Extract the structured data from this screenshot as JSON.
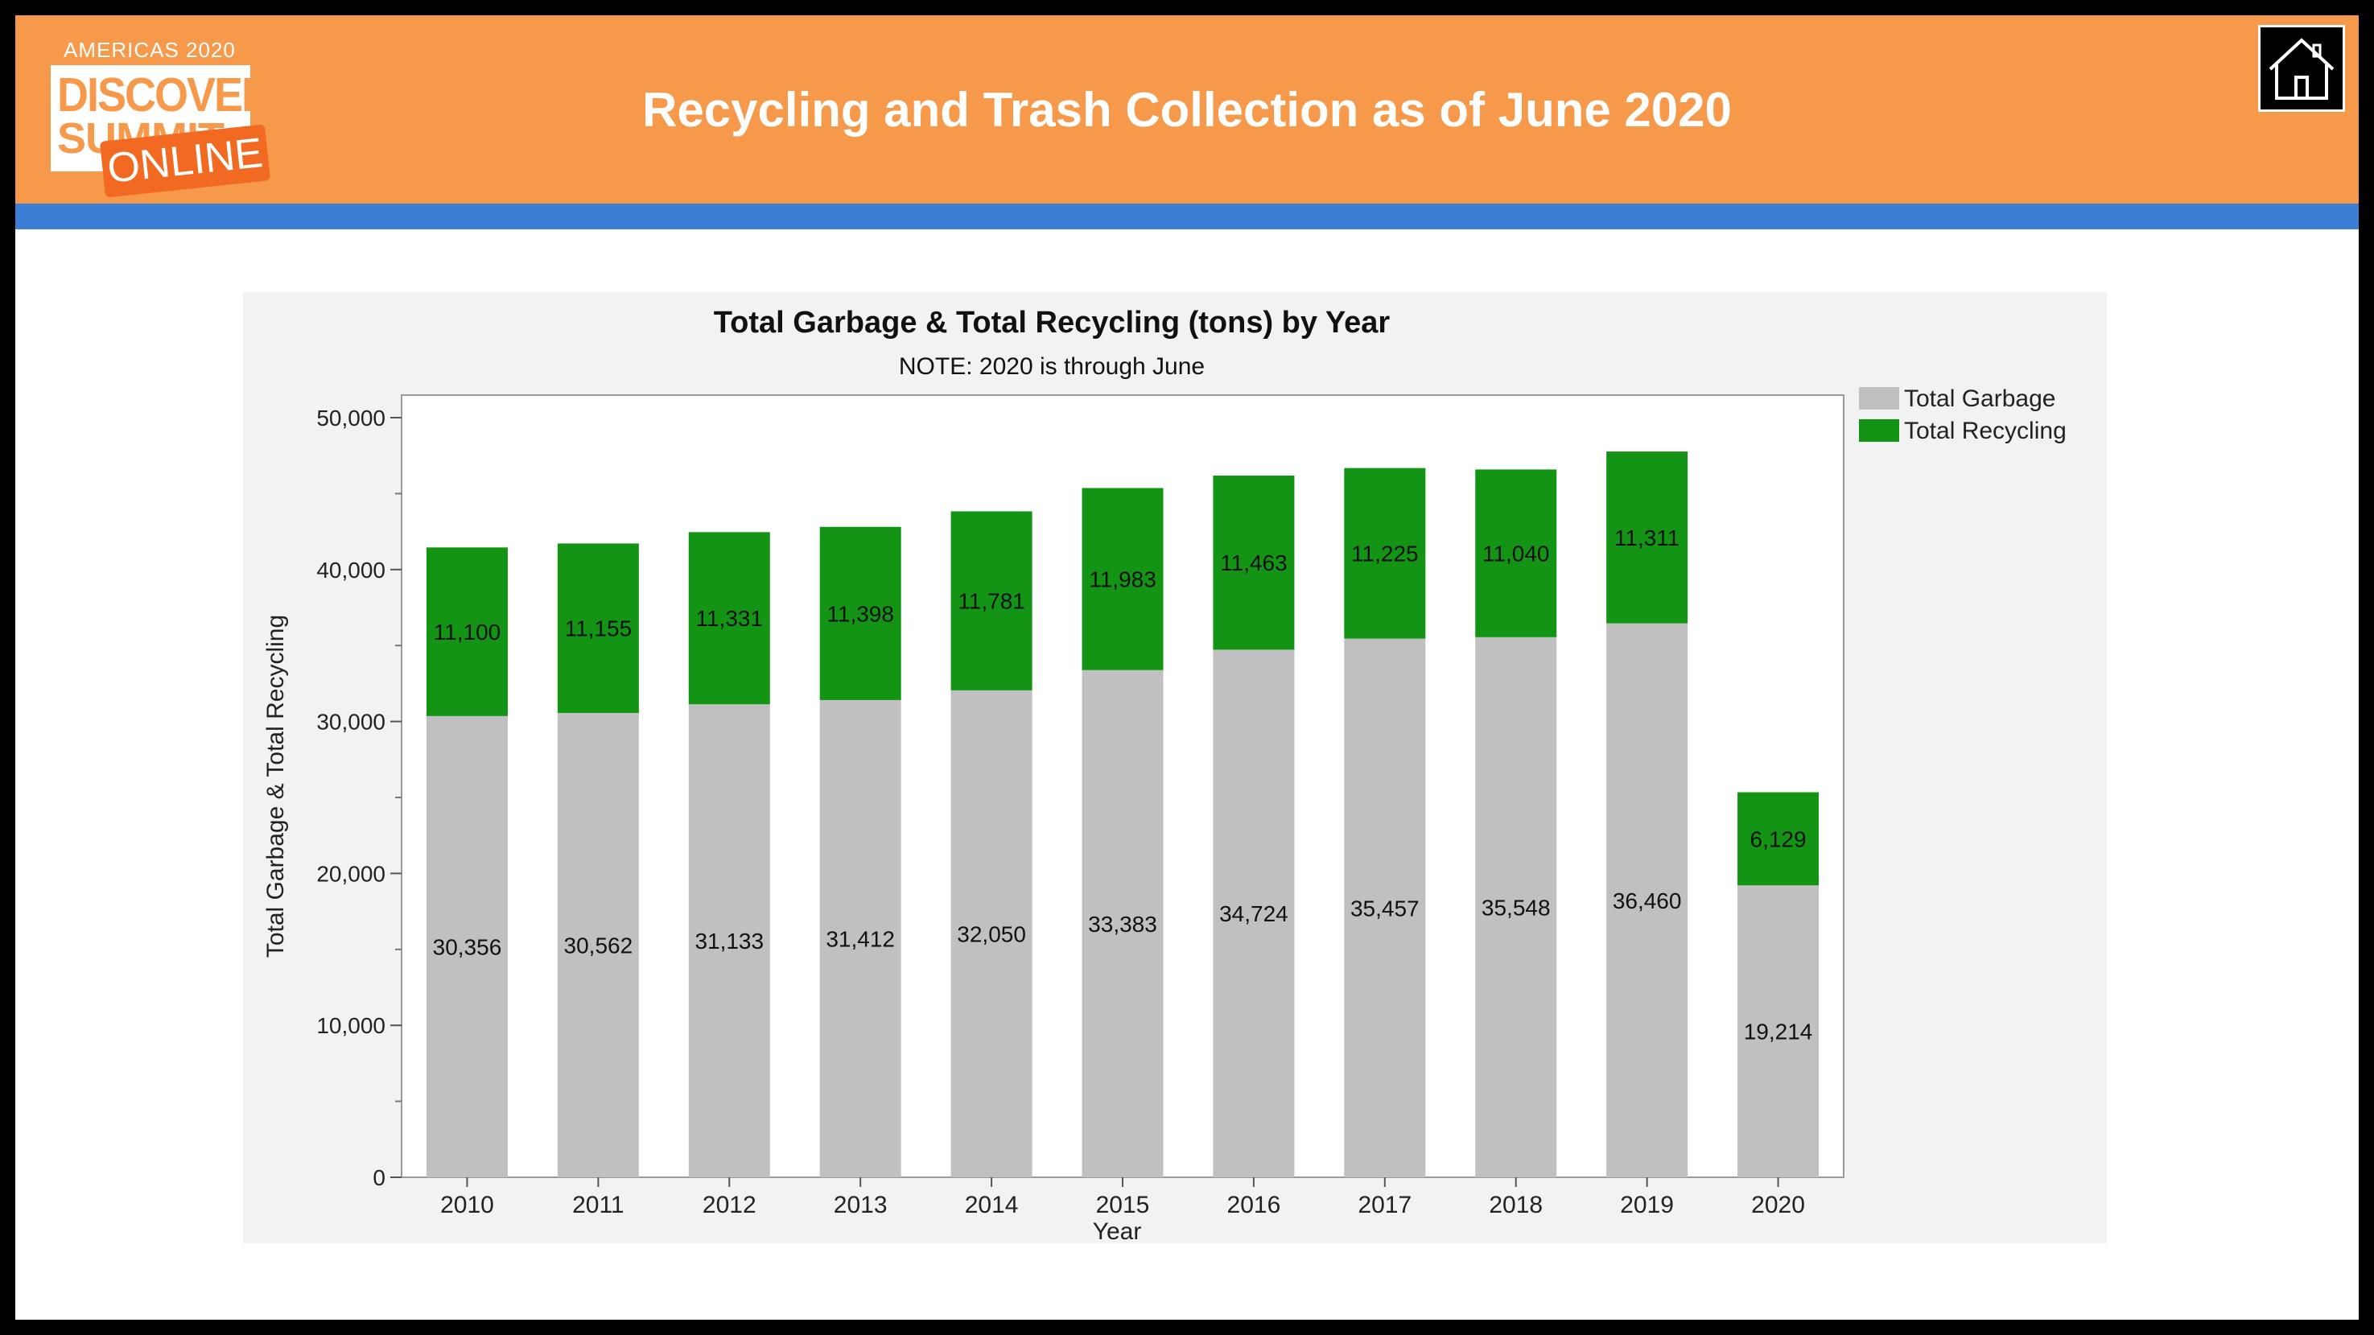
{
  "header": {
    "title": "Recycling and Trash Collection as of June 2020",
    "logo": {
      "line1": "AMERICAS 2020",
      "line2": "DISCOVERY",
      "line3": "SUMMIT",
      "line4": "ONLINE"
    },
    "home_icon": "home-icon"
  },
  "colors": {
    "header_orange": "#F7994A",
    "band_blue": "#3A7FD5",
    "garbage_gray": "#C0C0C0",
    "recycling_green": "#149414"
  },
  "chart_data": {
    "type": "bar",
    "stacked": true,
    "title": "Total Garbage & Total Recycling (tons) by Year",
    "subtitle": "NOTE: 2020 is through June",
    "xlabel": "Year",
    "ylabel": "Total Garbage & Total Recycling",
    "ylim": [
      0,
      50000
    ],
    "yticks": [
      "0",
      "10,000",
      "20,000",
      "30,000",
      "40,000",
      "50,000"
    ],
    "legend_position": "right",
    "categories": [
      "2010",
      "2011",
      "2012",
      "2013",
      "2014",
      "2015",
      "2016",
      "2017",
      "2018",
      "2019",
      "2020"
    ],
    "series": [
      {
        "name": "Total Garbage",
        "color": "#C0C0C0",
        "values": [
          30356,
          30562,
          31133,
          31412,
          32050,
          33383,
          34724,
          35457,
          35548,
          36460,
          19214
        ],
        "labels": [
          "30,356",
          "30,562",
          "31,133",
          "31,412",
          "32,050",
          "33,383",
          "34,724",
          "35,457",
          "35,548",
          "36,460",
          "19,214"
        ]
      },
      {
        "name": "Total Recycling",
        "color": "#149414",
        "values": [
          11100,
          11155,
          11331,
          11398,
          11781,
          11983,
          11463,
          11225,
          11040,
          11311,
          6129
        ],
        "labels": [
          "11,100",
          "11,155",
          "11,331",
          "11,398",
          "11,781",
          "11,983",
          "11,463",
          "11,225",
          "11,040",
          "11,311",
          "6,129"
        ]
      }
    ]
  }
}
